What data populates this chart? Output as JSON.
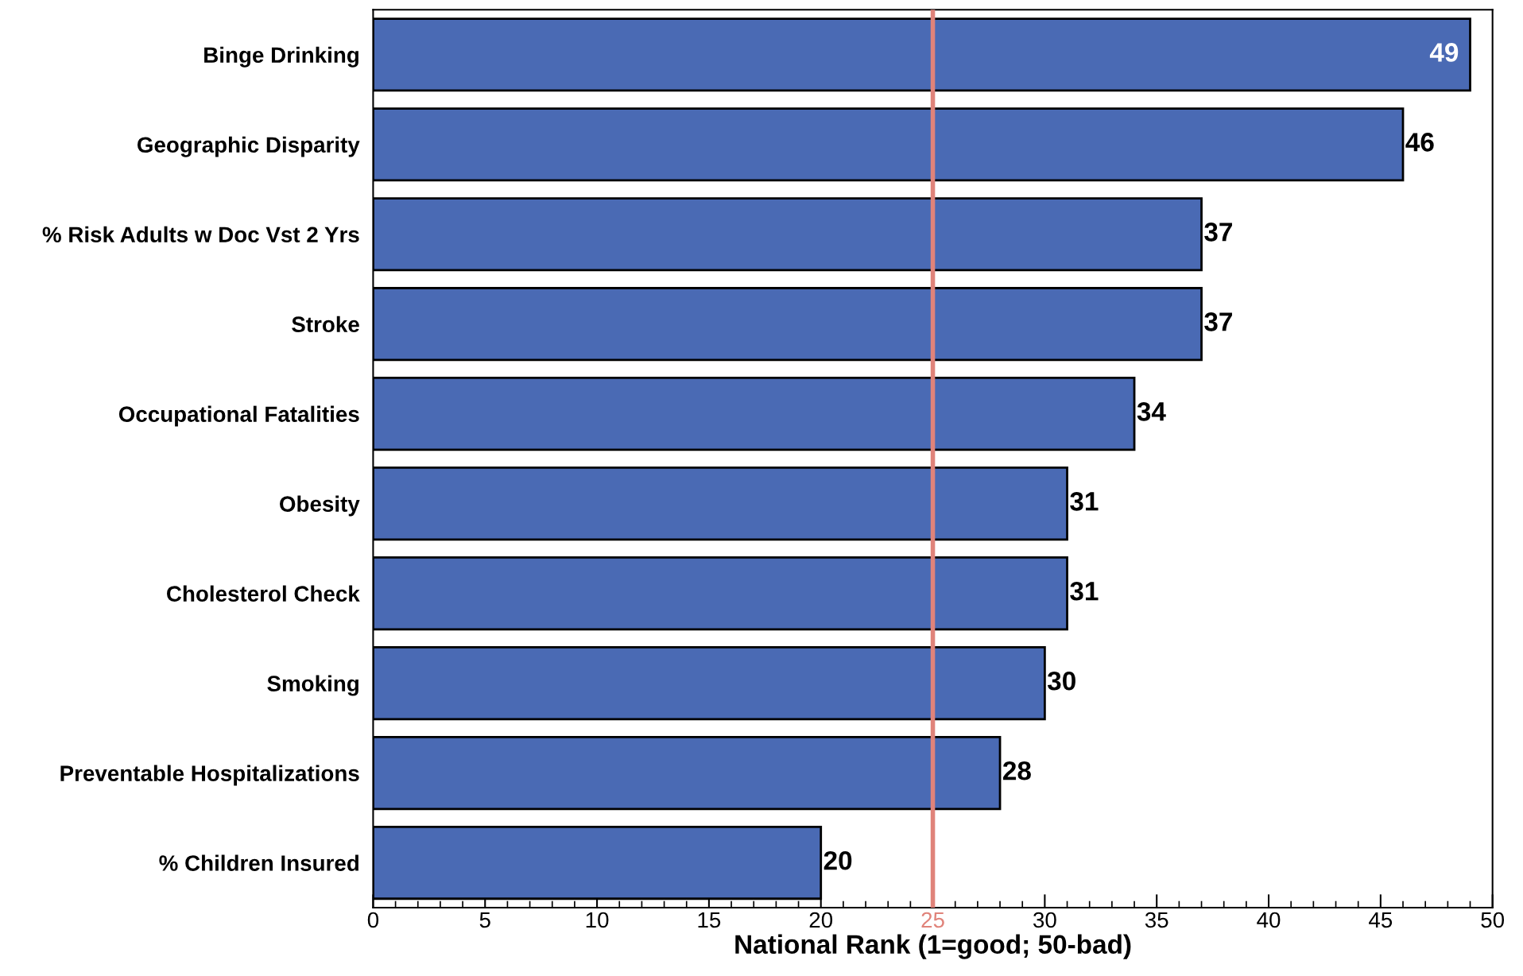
{
  "chart_data": {
    "type": "bar",
    "orientation": "horizontal",
    "xlabel": "National Rank (1=good; 50-bad)",
    "categories": [
      "Binge Drinking",
      "Geographic Disparity",
      "% Risk Adults w Doc Vst 2 Yrs",
      "Stroke",
      "Occupational Fatalities",
      "Obesity",
      "Cholesterol Check",
      "Smoking",
      "Preventable Hospitalizations",
      "% Children Insured"
    ],
    "values": [
      49,
      46,
      37,
      37,
      34,
      31,
      31,
      30,
      28,
      20
    ],
    "color": "#4a6ab4",
    "xlim": [
      0,
      50
    ],
    "xticks": [
      0,
      5,
      10,
      15,
      20,
      25,
      30,
      35,
      40,
      45,
      50
    ],
    "ref_lines": [
      {
        "axis": "x",
        "value": 25,
        "color": "#e0837a"
      }
    ],
    "data_labels": true,
    "grid": false,
    "legend": false
  }
}
